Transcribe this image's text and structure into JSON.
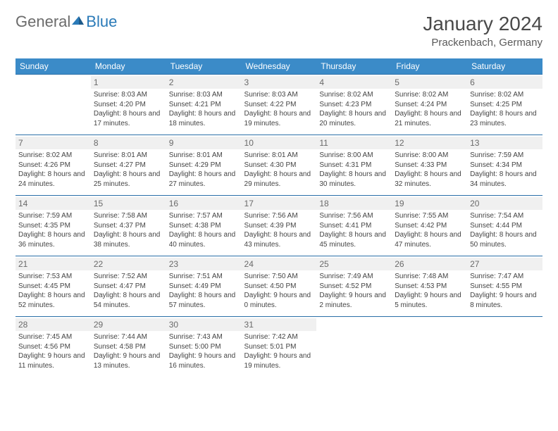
{
  "logo": {
    "general": "General",
    "blue": "Blue"
  },
  "title": "January 2024",
  "subtitle": "Prackenbach, Germany",
  "colors": {
    "header_bg": "#3b8bc8",
    "header_text": "#ffffff",
    "daynum_bg": "#f0f0f0",
    "daynum_text": "#6a6a6a",
    "cell_border": "#2a6fa8",
    "body_text": "#444444",
    "title_text": "#4a4a4a",
    "logo_gray": "#6b6b6b",
    "logo_blue": "#2a7ab8"
  },
  "daynames": [
    "Sunday",
    "Monday",
    "Tuesday",
    "Wednesday",
    "Thursday",
    "Friday",
    "Saturday"
  ],
  "weeks": [
    [
      {
        "empty": true
      },
      {
        "n": "1",
        "sr": "8:03 AM",
        "ss": "4:20 PM",
        "dl": "8 hours and 17 minutes."
      },
      {
        "n": "2",
        "sr": "8:03 AM",
        "ss": "4:21 PM",
        "dl": "8 hours and 18 minutes."
      },
      {
        "n": "3",
        "sr": "8:03 AM",
        "ss": "4:22 PM",
        "dl": "8 hours and 19 minutes."
      },
      {
        "n": "4",
        "sr": "8:02 AM",
        "ss": "4:23 PM",
        "dl": "8 hours and 20 minutes."
      },
      {
        "n": "5",
        "sr": "8:02 AM",
        "ss": "4:24 PM",
        "dl": "8 hours and 21 minutes."
      },
      {
        "n": "6",
        "sr": "8:02 AM",
        "ss": "4:25 PM",
        "dl": "8 hours and 23 minutes."
      }
    ],
    [
      {
        "n": "7",
        "sr": "8:02 AM",
        "ss": "4:26 PM",
        "dl": "8 hours and 24 minutes."
      },
      {
        "n": "8",
        "sr": "8:01 AM",
        "ss": "4:27 PM",
        "dl": "8 hours and 25 minutes."
      },
      {
        "n": "9",
        "sr": "8:01 AM",
        "ss": "4:29 PM",
        "dl": "8 hours and 27 minutes."
      },
      {
        "n": "10",
        "sr": "8:01 AM",
        "ss": "4:30 PM",
        "dl": "8 hours and 29 minutes."
      },
      {
        "n": "11",
        "sr": "8:00 AM",
        "ss": "4:31 PM",
        "dl": "8 hours and 30 minutes."
      },
      {
        "n": "12",
        "sr": "8:00 AM",
        "ss": "4:33 PM",
        "dl": "8 hours and 32 minutes."
      },
      {
        "n": "13",
        "sr": "7:59 AM",
        "ss": "4:34 PM",
        "dl": "8 hours and 34 minutes."
      }
    ],
    [
      {
        "n": "14",
        "sr": "7:59 AM",
        "ss": "4:35 PM",
        "dl": "8 hours and 36 minutes."
      },
      {
        "n": "15",
        "sr": "7:58 AM",
        "ss": "4:37 PM",
        "dl": "8 hours and 38 minutes."
      },
      {
        "n": "16",
        "sr": "7:57 AM",
        "ss": "4:38 PM",
        "dl": "8 hours and 40 minutes."
      },
      {
        "n": "17",
        "sr": "7:56 AM",
        "ss": "4:39 PM",
        "dl": "8 hours and 43 minutes."
      },
      {
        "n": "18",
        "sr": "7:56 AM",
        "ss": "4:41 PM",
        "dl": "8 hours and 45 minutes."
      },
      {
        "n": "19",
        "sr": "7:55 AM",
        "ss": "4:42 PM",
        "dl": "8 hours and 47 minutes."
      },
      {
        "n": "20",
        "sr": "7:54 AM",
        "ss": "4:44 PM",
        "dl": "8 hours and 50 minutes."
      }
    ],
    [
      {
        "n": "21",
        "sr": "7:53 AM",
        "ss": "4:45 PM",
        "dl": "8 hours and 52 minutes."
      },
      {
        "n": "22",
        "sr": "7:52 AM",
        "ss": "4:47 PM",
        "dl": "8 hours and 54 minutes."
      },
      {
        "n": "23",
        "sr": "7:51 AM",
        "ss": "4:49 PM",
        "dl": "8 hours and 57 minutes."
      },
      {
        "n": "24",
        "sr": "7:50 AM",
        "ss": "4:50 PM",
        "dl": "9 hours and 0 minutes."
      },
      {
        "n": "25",
        "sr": "7:49 AM",
        "ss": "4:52 PM",
        "dl": "9 hours and 2 minutes."
      },
      {
        "n": "26",
        "sr": "7:48 AM",
        "ss": "4:53 PM",
        "dl": "9 hours and 5 minutes."
      },
      {
        "n": "27",
        "sr": "7:47 AM",
        "ss": "4:55 PM",
        "dl": "9 hours and 8 minutes."
      }
    ],
    [
      {
        "n": "28",
        "sr": "7:45 AM",
        "ss": "4:56 PM",
        "dl": "9 hours and 11 minutes."
      },
      {
        "n": "29",
        "sr": "7:44 AM",
        "ss": "4:58 PM",
        "dl": "9 hours and 13 minutes."
      },
      {
        "n": "30",
        "sr": "7:43 AM",
        "ss": "5:00 PM",
        "dl": "9 hours and 16 minutes."
      },
      {
        "n": "31",
        "sr": "7:42 AM",
        "ss": "5:01 PM",
        "dl": "9 hours and 19 minutes."
      },
      {
        "empty": true
      },
      {
        "empty": true
      },
      {
        "empty": true
      }
    ]
  ],
  "labels": {
    "sunrise": "Sunrise:",
    "sunset": "Sunset:",
    "daylight": "Daylight:"
  }
}
